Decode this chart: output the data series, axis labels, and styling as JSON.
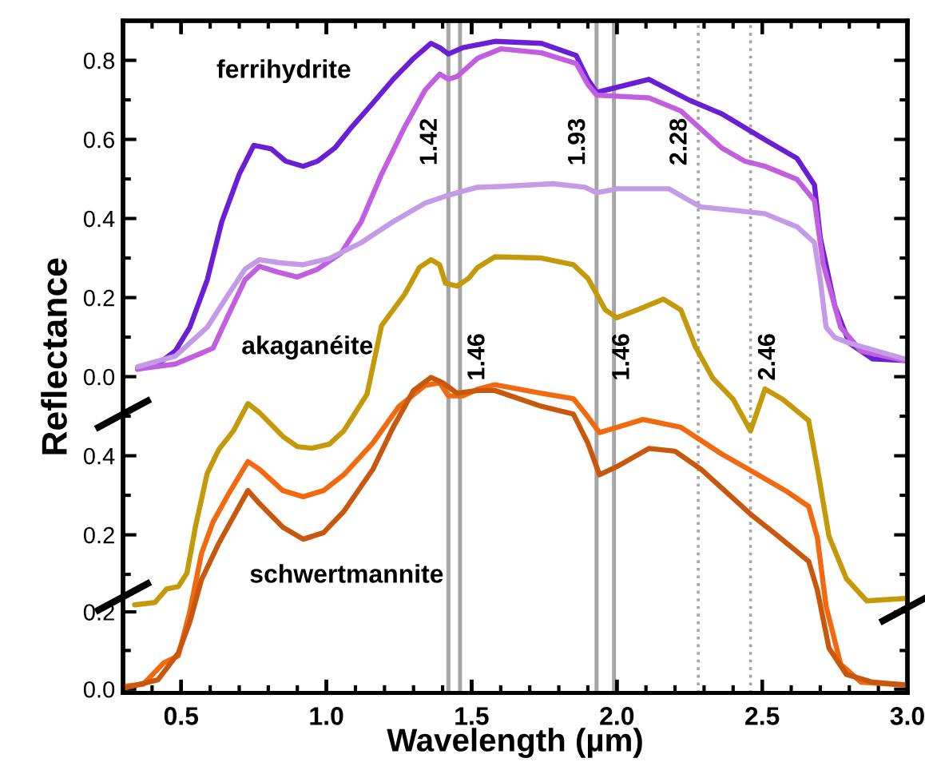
{
  "chart_data": [
    {
      "type": "line",
      "ylabel": "Reflectance",
      "annotations": [
        "ferrihydrite"
      ],
      "xlim": [
        0.3,
        3.0
      ],
      "ylim": [
        -0.8,
        0.9
      ],
      "tick_labels": "y",
      "xticks": [
        0.5,
        1.0,
        1.5,
        2.0,
        2.5,
        3.0,
        {
          "value": 0.4,
          "label": null
        },
        {
          "value": 0.6,
          "label": null
        },
        {
          "value": 0.7,
          "label": null
        },
        {
          "value": 0.8,
          "label": null
        },
        {
          "value": 0.9,
          "label": null
        },
        {
          "value": 1.1,
          "label": null
        },
        {
          "value": 1.2,
          "label": null
        },
        {
          "value": 1.3,
          "label": null
        },
        {
          "value": 1.4,
          "label": null
        },
        {
          "value": 1.6,
          "label": null
        },
        {
          "value": 1.7,
          "label": null
        },
        {
          "value": 1.8,
          "label": null
        },
        {
          "value": 1.9,
          "label": null
        },
        {
          "value": 2.1,
          "label": null
        },
        {
          "value": 2.2,
          "label": null
        },
        {
          "value": 2.3,
          "label": null
        },
        {
          "value": 2.4,
          "label": null
        },
        {
          "value": 2.6,
          "label": null
        },
        {
          "value": 2.7,
          "label": null
        },
        {
          "value": 2.8,
          "label": null
        },
        {
          "value": 2.9,
          "label": null
        }
      ],
      "yticks": [
        {
          "value": 0,
          "label": "0.0"
        },
        0.2,
        0.4,
        0.6,
        0.8,
        {
          "value": 0.1,
          "label": null
        },
        {
          "value": 0.3,
          "label": null
        },
        {
          "value": 0.5,
          "label": null
        },
        {
          "value": 0.7,
          "label": null
        }
      ],
      "ref_lines": [
        {
          "axis": "x",
          "value": 1.42,
          "label": "1.42",
          "color": "#a6a6a6",
          "line_style": "solid"
        },
        {
          "axis": "x",
          "value": 1.46,
          "label": "1.46",
          "color": "#a6a6a6",
          "line_style": "solid"
        },
        {
          "axis": "x",
          "value": 1.93,
          "label": "1.93",
          "color": "#a6a6a6",
          "line_style": "solid"
        },
        {
          "axis": "x",
          "value": 1.99,
          "color": "#a6a6a6",
          "line_style": "solid"
        },
        {
          "axis": "x",
          "value": 2.28,
          "label": "2.28",
          "color": "#a6a6a6",
          "line_style": "dotted"
        },
        {
          "axis": "x",
          "value": 2.46,
          "label": "2.46",
          "color": "#a6a6a6",
          "line_style": "dotted"
        }
      ],
      "series": [
        {
          "color": "#6a1fd6",
          "x": [
            0.35,
            0.42,
            0.48,
            0.53,
            0.59,
            0.64,
            0.7,
            0.75,
            0.81,
            0.86,
            0.92,
            0.97,
            1.03,
            1.08,
            1.16,
            1.23,
            1.3,
            1.36,
            1.39,
            1.42,
            1.47,
            1.58,
            1.74,
            1.86,
            1.9,
            1.93,
            2.11,
            2.25,
            2.36,
            2.51,
            2.62,
            2.68,
            2.7,
            2.75,
            2.8,
            2.88,
            2.99
          ],
          "values": [
            0.019,
            0.032,
            0.065,
            0.125,
            0.245,
            0.392,
            0.512,
            0.585,
            0.576,
            0.545,
            0.532,
            0.545,
            0.579,
            0.625,
            0.692,
            0.752,
            0.805,
            0.843,
            0.832,
            0.816,
            0.832,
            0.848,
            0.843,
            0.812,
            0.752,
            0.719,
            0.752,
            0.699,
            0.665,
            0.599,
            0.552,
            0.485,
            0.352,
            0.179,
            0.085,
            0.045,
            0.041
          ]
        },
        {
          "color": "#c25ee0",
          "x": [
            0.35,
            0.48,
            0.61,
            0.66,
            0.72,
            0.77,
            0.83,
            0.9,
            0.97,
            1.05,
            1.12,
            1.19,
            1.27,
            1.34,
            1.39,
            1.42,
            1.45,
            1.52,
            1.6,
            1.74,
            1.86,
            1.9,
            1.93,
            2.11,
            2.22,
            2.36,
            2.44,
            2.51,
            2.62,
            2.68,
            2.71,
            2.77,
            2.84,
            2.99
          ],
          "values": [
            0.019,
            0.032,
            0.072,
            0.152,
            0.245,
            0.279,
            0.265,
            0.252,
            0.272,
            0.312,
            0.392,
            0.512,
            0.632,
            0.725,
            0.765,
            0.752,
            0.759,
            0.805,
            0.829,
            0.819,
            0.792,
            0.739,
            0.712,
            0.705,
            0.672,
            0.579,
            0.545,
            0.532,
            0.499,
            0.445,
            0.285,
            0.125,
            0.065,
            0.041
          ]
        },
        {
          "color": "#c39be6",
          "x": [
            0.35,
            0.48,
            0.59,
            0.66,
            0.72,
            0.77,
            0.84,
            0.92,
            1.01,
            1.12,
            1.23,
            1.34,
            1.42,
            1.52,
            1.6,
            1.78,
            1.89,
            1.93,
            2.0,
            2.18,
            2.25,
            2.29,
            2.4,
            2.51,
            2.62,
            2.68,
            2.7,
            2.72,
            2.75,
            2.8,
            2.99
          ],
          "values": [
            0.025,
            0.052,
            0.125,
            0.205,
            0.272,
            0.296,
            0.288,
            0.283,
            0.299,
            0.339,
            0.392,
            0.439,
            0.459,
            0.479,
            0.481,
            0.488,
            0.479,
            0.465,
            0.475,
            0.475,
            0.445,
            0.429,
            0.421,
            0.412,
            0.379,
            0.339,
            0.245,
            0.125,
            0.099,
            0.085,
            0.045
          ]
        }
      ]
    },
    {
      "type": "line",
      "annotations": [
        "akaganéite",
        "1.46"
      ],
      "xlim": [
        0.3,
        3.0
      ],
      "ylim": [
        -0.2,
        1.5
      ],
      "tick_labels": "y",
      "xticks": [
        0.5,
        1.0,
        1.5,
        2.0,
        2.5,
        3.0
      ],
      "yticks": [
        0.2,
        0.4,
        {
          "value": 0.1,
          "label": null
        },
        {
          "value": 0.3,
          "label": null
        },
        {
          "value": 0.5,
          "label": null
        }
      ],
      "series": [
        {
          "color": "#c49a0a",
          "x": [
            0.34,
            0.41,
            0.45,
            0.49,
            0.52,
            0.55,
            0.59,
            0.63,
            0.68,
            0.73,
            0.77,
            0.85,
            0.9,
            0.95,
            1.01,
            1.06,
            1.14,
            1.19,
            1.27,
            1.32,
            1.36,
            1.39,
            1.41,
            1.45,
            1.49,
            1.52,
            1.58,
            1.74,
            1.85,
            1.9,
            1.96,
            2.0,
            2.07,
            2.16,
            2.22,
            2.27,
            2.33,
            2.4,
            2.46,
            2.51,
            2.57,
            2.66,
            2.69,
            2.73,
            2.79,
            2.86,
            2.99
          ],
          "values": [
            0.023,
            0.029,
            0.063,
            0.069,
            0.103,
            0.223,
            0.356,
            0.416,
            0.463,
            0.532,
            0.509,
            0.449,
            0.423,
            0.419,
            0.429,
            0.463,
            0.556,
            0.729,
            0.809,
            0.876,
            0.896,
            0.883,
            0.836,
            0.829,
            0.849,
            0.876,
            0.903,
            0.9,
            0.883,
            0.849,
            0.769,
            0.749,
            0.769,
            0.796,
            0.769,
            0.676,
            0.596,
            0.543,
            0.463,
            0.569,
            0.543,
            0.489,
            0.369,
            0.196,
            0.089,
            0.033,
            0.039
          ]
        }
      ]
    },
    {
      "type": "line",
      "xlabel": "Wavelength (µm)",
      "annotations": [
        "schwertmannite"
      ],
      "xlim": [
        0.3,
        3.0
      ],
      "ylim": [
        -0.01,
        1.73
      ],
      "xticks": [
        0.5,
        {
          "value": 1,
          "label": "1.0"
        },
        1.5,
        {
          "value": 2,
          "label": "2.0"
        },
        2.5,
        {
          "value": 3,
          "label": "3.0"
        }
      ],
      "yticks": [
        {
          "value": 0,
          "label": "0.0"
        },
        0.2,
        {
          "value": 0.1,
          "label": null
        }
      ],
      "series": [
        {
          "color": "#f26a10",
          "x": [
            0.31,
            0.37,
            0.44,
            0.49,
            0.53,
            0.57,
            0.61,
            0.66,
            0.73,
            0.77,
            0.85,
            0.92,
            0.99,
            1.06,
            1.16,
            1.25,
            1.34,
            1.39,
            1.42,
            1.47,
            1.52,
            1.58,
            1.74,
            1.85,
            1.9,
            1.94,
            2.09,
            2.22,
            2.36,
            2.47,
            2.58,
            2.66,
            2.69,
            2.72,
            2.77,
            2.84,
            2.99
          ],
          "values": [
            0.008,
            0.013,
            0.068,
            0.086,
            0.201,
            0.351,
            0.433,
            0.501,
            0.589,
            0.569,
            0.514,
            0.498,
            0.514,
            0.555,
            0.637,
            0.732,
            0.786,
            0.793,
            0.759,
            0.759,
            0.776,
            0.788,
            0.766,
            0.752,
            0.705,
            0.664,
            0.698,
            0.678,
            0.609,
            0.562,
            0.514,
            0.473,
            0.392,
            0.215,
            0.065,
            0.018,
            0.011
          ]
        },
        {
          "color": "#c8580e",
          "x": [
            0.31,
            0.42,
            0.49,
            0.53,
            0.57,
            0.63,
            0.68,
            0.73,
            0.77,
            0.85,
            0.92,
            0.99,
            1.06,
            1.16,
            1.23,
            1.3,
            1.36,
            1.4,
            1.45,
            1.52,
            1.58,
            1.74,
            1.85,
            1.9,
            1.94,
            2.0,
            2.11,
            2.2,
            2.29,
            2.46,
            2.55,
            2.66,
            2.69,
            2.73,
            2.79,
            2.88,
            2.99
          ],
          "values": [
            0.004,
            0.024,
            0.093,
            0.174,
            0.283,
            0.378,
            0.446,
            0.514,
            0.48,
            0.419,
            0.388,
            0.405,
            0.46,
            0.569,
            0.678,
            0.773,
            0.807,
            0.793,
            0.766,
            0.773,
            0.773,
            0.732,
            0.712,
            0.637,
            0.555,
            0.576,
            0.623,
            0.616,
            0.569,
            0.453,
            0.399,
            0.331,
            0.256,
            0.106,
            0.038,
            0.018,
            0.011
          ]
        }
      ]
    }
  ]
}
